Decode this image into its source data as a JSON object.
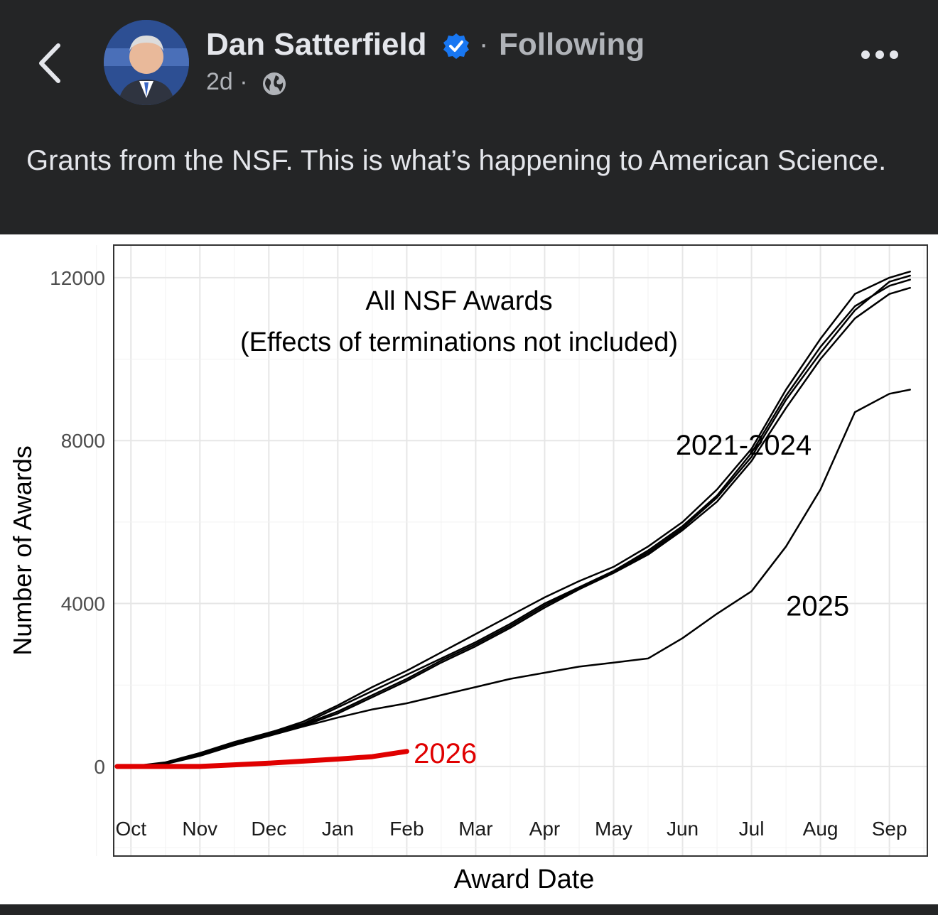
{
  "post": {
    "author": "Dan Satterfield",
    "relation": "Following",
    "time": "2d",
    "meta_sep": "·",
    "follow_sep": "·",
    "caption": "Grants from the NSF. This is what’s happening to American Science.",
    "icons": [
      "back-chevron-icon",
      "verified-badge-icon",
      "globe-icon",
      "more-options-icon"
    ],
    "colors": {
      "background": "#242526",
      "text": "#e4e6eb",
      "secondary": "#b0b3b8",
      "verified": "#1877f2"
    }
  },
  "chart_data": {
    "type": "line",
    "title": "All NSF Awards",
    "subtitle": "(Effects of terminations not included)",
    "xlabel": "Award Date",
    "ylabel": "Number of Awards",
    "x_ticks": [
      "Oct",
      "Nov",
      "Dec",
      "Jan",
      "Feb",
      "Mar",
      "Apr",
      "May",
      "Jun",
      "Jul",
      "Aug",
      "Sep"
    ],
    "y_ticks": [
      0,
      4000,
      8000,
      12000
    ],
    "xlim": [
      -0.25,
      11.55
    ],
    "ylim": [
      -2200,
      12800
    ],
    "grid": true,
    "series_colors": {
      "2021-2024": "#000000",
      "2025": "#000000",
      "2026": "#e00000"
    },
    "annotations": [
      {
        "text": "2021-2024",
        "x": 7.9,
        "y": 7900
      },
      {
        "text": "2025",
        "x": 9.5,
        "y": 3950
      },
      {
        "text": "2026",
        "x": 4.1,
        "y": 330
      }
    ],
    "x": [
      0,
      0.5,
      1,
      1.5,
      2,
      2.5,
      3,
      3.5,
      4,
      4.5,
      5,
      5.5,
      6,
      6.5,
      7,
      7.5,
      8,
      8.5,
      9,
      9.5,
      10,
      10.5,
      11,
      11.3
    ],
    "series": [
      {
        "name": "2021-2024",
        "values": [
          0,
          80,
          300,
          550,
          780,
          1000,
          1300,
          1700,
          2100,
          2550,
          2950,
          3400,
          3900,
          4350,
          4750,
          5200,
          5800,
          6500,
          7500,
          8800,
          10000,
          11000,
          11600,
          11750
        ]
      },
      {
        "name": "2021-2024",
        "values": [
          0,
          100,
          330,
          600,
          830,
          1050,
          1450,
          1850,
          2250,
          2650,
          3050,
          3500,
          4000,
          4400,
          4800,
          5300,
          5900,
          6650,
          7700,
          9100,
          10300,
          11300,
          11800,
          11950
        ]
      },
      {
        "name": "2021-2024",
        "values": [
          0,
          70,
          290,
          560,
          800,
          1030,
          1350,
          1750,
          2150,
          2600,
          3000,
          3450,
          3950,
          4380,
          4780,
          5250,
          5850,
          6600,
          7600,
          9000,
          10150,
          11200,
          11900,
          12050
        ]
      },
      {
        "name": "2021-2024",
        "values": [
          0,
          90,
          320,
          580,
          820,
          1100,
          1500,
          1950,
          2350,
          2800,
          3250,
          3700,
          4150,
          4550,
          4900,
          5400,
          6000,
          6800,
          7800,
          9250,
          10500,
          11600,
          12000,
          12150
        ]
      },
      {
        "name": "2025",
        "values": [
          0,
          60,
          260,
          520,
          750,
          980,
          1200,
          1400,
          1550,
          1750,
          1950,
          2150,
          2300,
          2450,
          2550,
          2650,
          3150,
          3750,
          4300,
          5400,
          6800,
          8700,
          9150,
          9250
        ]
      },
      {
        "name": "2026",
        "x": [
          -0.2,
          0,
          0.5,
          1,
          1.5,
          2,
          2.5,
          3,
          3.5,
          4
        ],
        "values": [
          0,
          0,
          0,
          0,
          40,
          80,
          130,
          180,
          240,
          370
        ]
      }
    ]
  }
}
